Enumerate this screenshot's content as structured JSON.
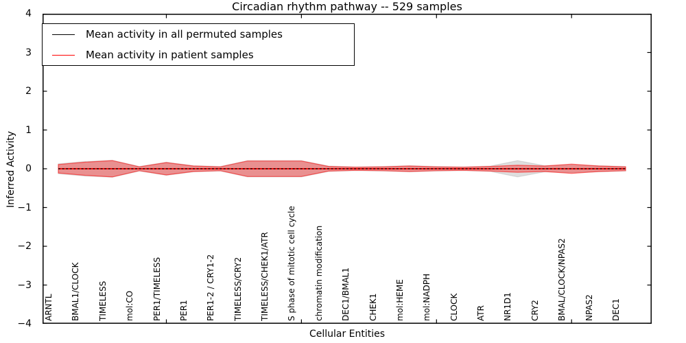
{
  "figure": {
    "title": "Circadian rhythm pathway -- 529 samples",
    "xlabel": "Cellular Entities",
    "ylabel": "Inferred Activity"
  },
  "legend": {
    "position": "upper left",
    "entries": [
      {
        "label": "Mean activity in all permuted samples",
        "color": "#000000"
      },
      {
        "label": "Mean activity in patient samples",
        "color": "#ff0000"
      }
    ]
  },
  "chart_data": {
    "type": "line",
    "title": "Circadian rhythm pathway -- 529 samples",
    "xlabel": "Cellular Entities",
    "ylabel": "Inferred Activity",
    "ylim": [
      -4,
      4
    ],
    "yticks": [
      -4,
      -3,
      -2,
      -1,
      0,
      1,
      2,
      3,
      4
    ],
    "x_major_ticks_at_category_index": [
      4,
      9,
      14,
      19
    ],
    "grid": false,
    "legend_position": "upper left",
    "categories": [
      "ARNTL",
      "BMAL1/CLOCK",
      "TIMELESS",
      "mol:CO",
      "PER1/TIMELESS",
      "PER1",
      "PER1-2 / CRY1-2",
      "TIMELESS/CRY2",
      "TIMELESS/CHEK1/ATR",
      "S phase of mitotic cell cycle",
      "chromatin modification",
      "DEC1/BMAL1",
      "CHEK1",
      "mol:HEME",
      "mol:NADPH",
      "CLOCK",
      "ATR",
      "NR1D1",
      "CRY2",
      "BMAL/CLOCK/NPAS2",
      "NPAS2",
      "DEC1"
    ],
    "series": [
      {
        "name": "Mean activity in all permuted samples",
        "line_color": "#000000",
        "line_style": "dashed",
        "values": [
          0,
          0,
          0,
          0,
          0,
          0,
          0,
          0,
          0,
          0,
          0,
          0,
          0,
          0,
          0,
          0,
          0,
          0,
          0,
          0,
          0,
          0
        ],
        "band_halfwidth": [
          0.13,
          0.19,
          0.22,
          0.06,
          0.17,
          0.08,
          0.06,
          0.21,
          0.21,
          0.21,
          0.07,
          0.05,
          0.06,
          0.08,
          0.06,
          0.05,
          0.07,
          0.21,
          0.08,
          0.1,
          0.08,
          0.06
        ],
        "band_color": "#000000",
        "band_opacity": 0.13
      },
      {
        "name": "Mean activity in patient samples",
        "line_color": "#ff0000",
        "line_style": "solid",
        "values": [
          0,
          0,
          0,
          0,
          0,
          0,
          0,
          0,
          0,
          0,
          0,
          0,
          0,
          0,
          0,
          0,
          0,
          0,
          0,
          0,
          0,
          0
        ],
        "band_halfwidth": [
          0.11,
          0.17,
          0.21,
          0.05,
          0.16,
          0.07,
          0.05,
          0.2,
          0.2,
          0.2,
          0.06,
          0.04,
          0.05,
          0.07,
          0.05,
          0.04,
          0.06,
          0.09,
          0.07,
          0.12,
          0.07,
          0.05
        ],
        "band_color": "#ff0000",
        "band_opacity": 0.35
      }
    ]
  }
}
